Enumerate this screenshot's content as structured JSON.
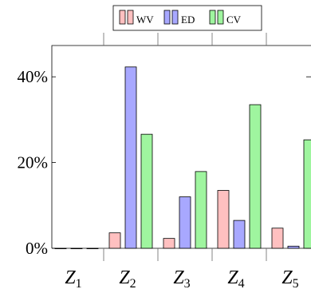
{
  "chart_data": {
    "type": "bar",
    "categories": [
      "Z1",
      "Z2",
      "Z3",
      "Z4",
      "Z5"
    ],
    "category_labels": [
      {
        "base": "Z",
        "sub": "1"
      },
      {
        "base": "Z",
        "sub": "2"
      },
      {
        "base": "Z",
        "sub": "3"
      },
      {
        "base": "Z",
        "sub": "4"
      },
      {
        "base": "Z",
        "sub": "5"
      }
    ],
    "series": [
      {
        "name": "WV",
        "color": "#ffc0c0",
        "values": [
          0.0,
          3.6,
          2.3,
          13.5,
          4.7
        ]
      },
      {
        "name": "ED",
        "color": "#a8a8ff",
        "values": [
          0.0,
          42.3,
          12.0,
          6.5,
          0.5
        ]
      },
      {
        "name": "CV",
        "color": "#9ff59f",
        "values": [
          0.0,
          26.6,
          17.9,
          33.5,
          25.3
        ]
      }
    ],
    "yticks": [
      0,
      20,
      40
    ],
    "ytick_labels": [
      "0%",
      "20%",
      "40%"
    ],
    "ylim": [
      0,
      47.3
    ],
    "legend_position": "top-center",
    "grid": false
  }
}
